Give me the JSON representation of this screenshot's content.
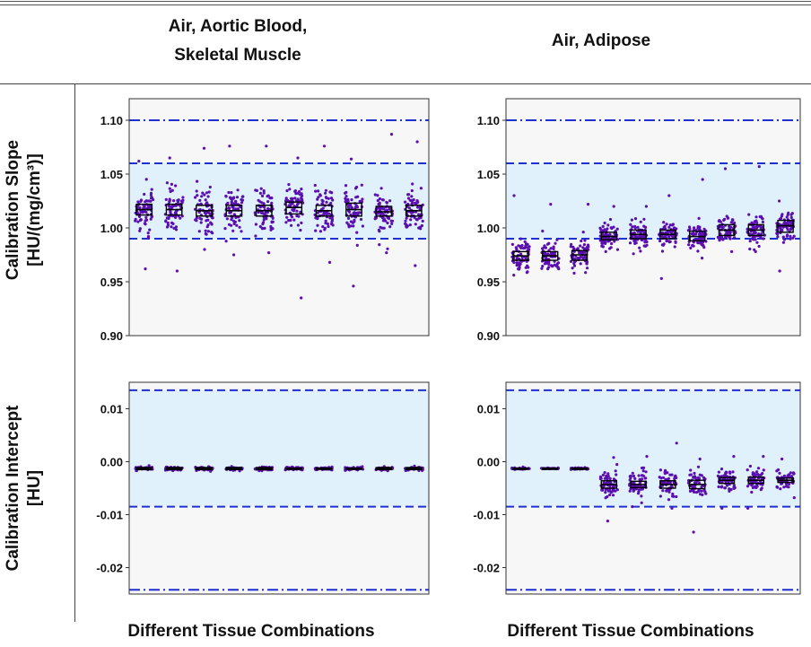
{
  "header": {
    "col1_line1": "Air, Aortic Blood,",
    "col1_line2": "Skeletal Muscle",
    "col2": "Air, Adipose"
  },
  "rows": {
    "slope_line1": "Calibration Slope",
    "slope_line2": "[HU/(mg/cm³)]",
    "intercept_line1": "Calibration Intercept",
    "intercept_line2": "[HU]"
  },
  "footer": {
    "xlabel_left": "Different Tissue Combinations",
    "xlabel_right": "Different Tissue Combinations"
  },
  "colors": {
    "band": "#e1f1fb",
    "ref_line": "#1f2fd0",
    "points": "#5a0fb0",
    "box": "#000000",
    "panel_bg": "#f7f7f7"
  },
  "chart_data": [
    {
      "type": "scatter",
      "panel": "slope-left",
      "ylim": [
        0.9,
        1.12
      ],
      "yticks": [
        "0.90",
        "0.95",
        "1.00",
        "1.05",
        "1.10"
      ],
      "yticks_values": [
        0.9,
        0.95,
        1.0,
        1.05,
        1.1
      ],
      "band": [
        0.99,
        1.06
      ],
      "dashed_lines": [
        0.99,
        1.06
      ],
      "dashdot_lines": [
        1.1
      ],
      "groups": [
        {
          "median": 1.017,
          "q1": 1.012,
          "q3": 1.022,
          "spread": 0.022,
          "n": 70,
          "outliers": [
            0.962,
            1.062
          ]
        },
        {
          "median": 1.017,
          "q1": 1.012,
          "q3": 1.022,
          "spread": 0.022,
          "n": 70,
          "outliers": [
            0.96,
            1.065
          ]
        },
        {
          "median": 1.016,
          "q1": 1.011,
          "q3": 1.021,
          "spread": 0.022,
          "n": 70,
          "outliers": [
            0.98,
            1.074
          ]
        },
        {
          "median": 1.016,
          "q1": 1.011,
          "q3": 1.021,
          "spread": 0.022,
          "n": 70,
          "outliers": [
            0.975,
            1.076
          ]
        },
        {
          "median": 1.016,
          "q1": 1.011,
          "q3": 1.021,
          "spread": 0.022,
          "n": 70,
          "outliers": [
            0.977,
            1.076
          ]
        },
        {
          "median": 1.019,
          "q1": 1.013,
          "q3": 1.024,
          "spread": 0.022,
          "n": 70,
          "outliers": [
            0.935,
            1.065
          ]
        },
        {
          "median": 1.016,
          "q1": 1.011,
          "q3": 1.021,
          "spread": 0.022,
          "n": 70,
          "outliers": [
            0.968,
            1.076
          ]
        },
        {
          "median": 1.017,
          "q1": 1.011,
          "q3": 1.023,
          "spread": 0.022,
          "n": 70,
          "outliers": [
            0.946,
            1.064
          ]
        },
        {
          "median": 1.015,
          "q1": 1.011,
          "q3": 1.02,
          "spread": 0.022,
          "n": 70,
          "outliers": [
            0.977,
            1.087
          ]
        },
        {
          "median": 1.016,
          "q1": 1.011,
          "q3": 1.021,
          "spread": 0.022,
          "n": 70,
          "outliers": [
            0.965,
            1.08
          ]
        }
      ]
    },
    {
      "type": "scatter",
      "panel": "slope-right",
      "ylim": [
        0.9,
        1.12
      ],
      "yticks": [
        "0.90",
        "0.95",
        "1.00",
        "1.05",
        "1.10"
      ],
      "yticks_values": [
        0.9,
        0.95,
        1.0,
        1.05,
        1.1
      ],
      "band": [
        0.99,
        1.06
      ],
      "dashed_lines": [
        0.99,
        1.06
      ],
      "dashdot_lines": [
        1.1
      ],
      "groups": [
        {
          "median": 0.974,
          "q1": 0.97,
          "q3": 0.978,
          "spread": 0.016,
          "n": 70,
          "outliers": [
            0.962,
            1.03
          ]
        },
        {
          "median": 0.974,
          "q1": 0.97,
          "q3": 0.978,
          "spread": 0.016,
          "n": 70,
          "outliers": [
            0.962,
            1.022
          ]
        },
        {
          "median": 0.975,
          "q1": 0.97,
          "q3": 0.979,
          "spread": 0.016,
          "n": 70,
          "outliers": [
            0.958,
            1.022
          ]
        },
        {
          "median": 0.992,
          "q1": 0.989,
          "q3": 0.996,
          "spread": 0.012,
          "n": 70,
          "outliers": [
            0.978,
            1.02
          ]
        },
        {
          "median": 0.994,
          "q1": 0.99,
          "q3": 0.998,
          "spread": 0.013,
          "n": 70,
          "outliers": [
            0.976,
            1.02
          ]
        },
        {
          "median": 0.994,
          "q1": 0.99,
          "q3": 0.998,
          "spread": 0.013,
          "n": 70,
          "outliers": [
            0.953,
            1.03
          ]
        },
        {
          "median": 0.992,
          "q1": 0.988,
          "q3": 0.997,
          "spread": 0.013,
          "n": 70,
          "outliers": [
            0.972,
            1.045
          ]
        },
        {
          "median": 0.998,
          "q1": 0.993,
          "q3": 1.003,
          "spread": 0.014,
          "n": 70,
          "outliers": [
            0.978,
            1.055
          ]
        },
        {
          "median": 0.998,
          "q1": 0.993,
          "q3": 1.003,
          "spread": 0.014,
          "n": 70,
          "outliers": [
            0.978,
            1.057
          ]
        },
        {
          "median": 1.002,
          "q1": 0.996,
          "q3": 1.007,
          "spread": 0.013,
          "n": 70,
          "outliers": [
            0.96,
            1.025
          ]
        }
      ]
    },
    {
      "type": "scatter",
      "panel": "intercept-left",
      "ylim": [
        -0.025,
        0.015
      ],
      "yticks": [
        "-0.02",
        "-0.01",
        "0.00",
        "0.01"
      ],
      "yticks_values": [
        -0.02,
        -0.01,
        0.0,
        0.01
      ],
      "band": [
        -0.0085,
        0.0135
      ],
      "dashed_lines": [
        -0.0085,
        0.0135
      ],
      "dashdot_lines": [
        -0.0242
      ],
      "groups": [
        {
          "median": -0.0013,
          "q1": -0.0015,
          "q3": -0.0011,
          "spread": 0.0004,
          "n": 40,
          "outliers": []
        },
        {
          "median": -0.0013,
          "q1": -0.0015,
          "q3": -0.0011,
          "spread": 0.0004,
          "n": 40,
          "outliers": []
        },
        {
          "median": -0.0013,
          "q1": -0.0015,
          "q3": -0.0011,
          "spread": 0.0004,
          "n": 40,
          "outliers": []
        },
        {
          "median": -0.0013,
          "q1": -0.0015,
          "q3": -0.0011,
          "spread": 0.0004,
          "n": 40,
          "outliers": []
        },
        {
          "median": -0.0013,
          "q1": -0.0015,
          "q3": -0.0011,
          "spread": 0.0004,
          "n": 40,
          "outliers": []
        },
        {
          "median": -0.0013,
          "q1": -0.0014,
          "q3": -0.0012,
          "spread": 0.0003,
          "n": 40,
          "outliers": []
        },
        {
          "median": -0.0013,
          "q1": -0.0014,
          "q3": -0.0012,
          "spread": 0.0003,
          "n": 40,
          "outliers": []
        },
        {
          "median": -0.0013,
          "q1": -0.0014,
          "q3": -0.0012,
          "spread": 0.0003,
          "n": 40,
          "outliers": []
        },
        {
          "median": -0.0013,
          "q1": -0.0015,
          "q3": -0.0011,
          "spread": 0.0004,
          "n": 40,
          "outliers": []
        },
        {
          "median": -0.0013,
          "q1": -0.0015,
          "q3": -0.0011,
          "spread": 0.0004,
          "n": 40,
          "outliers": []
        }
      ]
    },
    {
      "type": "scatter",
      "panel": "intercept-right",
      "ylim": [
        -0.025,
        0.015
      ],
      "yticks": [
        "-0.02",
        "-0.01",
        "0.00",
        "0.01"
      ],
      "yticks_values": [
        -0.02,
        -0.01,
        0.0,
        0.01
      ],
      "band": [
        -0.0085,
        0.0135
      ],
      "dashed_lines": [
        -0.0085,
        0.0135
      ],
      "dashdot_lines": [
        -0.0242
      ],
      "groups": [
        {
          "median": -0.0013,
          "q1": -0.0014,
          "q3": -0.0012,
          "spread": 0.0002,
          "n": 30,
          "outliers": []
        },
        {
          "median": -0.0013,
          "q1": -0.0014,
          "q3": -0.0012,
          "spread": 0.0002,
          "n": 30,
          "outliers": []
        },
        {
          "median": -0.0013,
          "q1": -0.0014,
          "q3": -0.0012,
          "spread": 0.0002,
          "n": 30,
          "outliers": []
        },
        {
          "median": -0.0043,
          "q1": -0.005,
          "q3": -0.0036,
          "spread": 0.0028,
          "n": 60,
          "outliers": [
            -0.0112,
            0.0008
          ]
        },
        {
          "median": -0.0043,
          "q1": -0.0049,
          "q3": -0.0037,
          "spread": 0.0026,
          "n": 60,
          "outliers": [
            -0.0085,
            0.001
          ]
        },
        {
          "median": -0.0043,
          "q1": -0.005,
          "q3": -0.0036,
          "spread": 0.0027,
          "n": 60,
          "outliers": [
            -0.0088,
            0.0035
          ]
        },
        {
          "median": -0.0043,
          "q1": -0.0051,
          "q3": -0.0035,
          "spread": 0.003,
          "n": 60,
          "outliers": [
            -0.0133,
            0.0005
          ]
        },
        {
          "median": -0.0035,
          "q1": -0.0041,
          "q3": -0.003,
          "spread": 0.0022,
          "n": 60,
          "outliers": [
            -0.0088,
            0.001
          ]
        },
        {
          "median": -0.0035,
          "q1": -0.0041,
          "q3": -0.0029,
          "spread": 0.0022,
          "n": 60,
          "outliers": [
            -0.0088,
            0.001
          ]
        },
        {
          "median": -0.0035,
          "q1": -0.0039,
          "q3": -0.0031,
          "spread": 0.0016,
          "n": 60,
          "outliers": [
            -0.0068,
            0.0005
          ]
        }
      ]
    }
  ]
}
